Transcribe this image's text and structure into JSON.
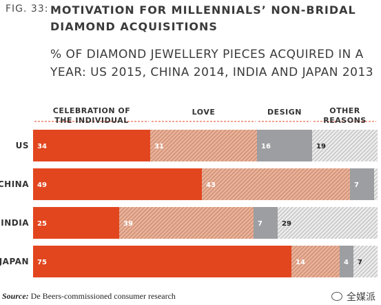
{
  "figure": {
    "label": "FIG. 33:",
    "title": "MOTIVATION FOR MILLENNIALS’ NON-BRIDAL DIAMOND ACQUISITIONS",
    "subtitle": "% OF DIAMOND JEWELLERY PIECES ACQUIRED IN A YEAR: US 2015, CHINA 2014, INDIA AND JAPAN 2013"
  },
  "source": {
    "prefix": "Source:",
    "text": " De Beers-commissioned consumer research"
  },
  "watermark": "全媒派",
  "colors": {
    "celebration": "#e2461f",
    "love": "#e9b49c",
    "love_stripe": "#cf8c70",
    "design": "#9c9ea1",
    "other": "#ececec",
    "other_stripe": "#b9b9b9",
    "header_line": "#e2461f"
  },
  "chart_data": {
    "type": "bar",
    "orientation": "horizontal",
    "stacked": true,
    "xlim": [
      0,
      100
    ],
    "categories": [
      "US",
      "CHINA",
      "INDIA",
      "JAPAN"
    ],
    "series": [
      {
        "name": "CELEBRATION OF THE INDIVIDUAL",
        "header_lines": [
          "CELEBRATION OF",
          "THE INDIVIDUAL"
        ],
        "values": [
          34,
          49,
          25,
          75
        ]
      },
      {
        "name": "LOVE",
        "header_lines": [
          "LOVE"
        ],
        "values": [
          31,
          43,
          39,
          14
        ]
      },
      {
        "name": "DESIGN",
        "header_lines": [
          "DESIGN"
        ],
        "values": [
          16,
          7,
          7,
          4
        ]
      },
      {
        "name": "OTHER REASONS",
        "header_lines": [
          "OTHER",
          "REASONS"
        ],
        "values": [
          19,
          1,
          29,
          7
        ]
      }
    ]
  }
}
